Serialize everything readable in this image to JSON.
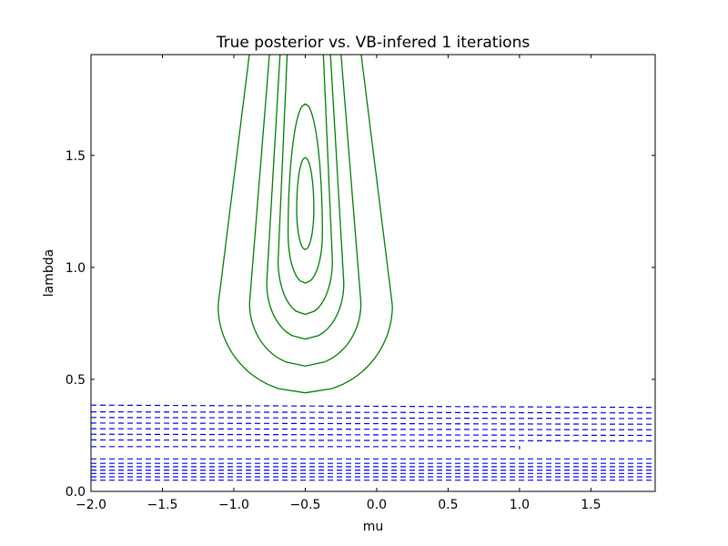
{
  "chart_data": {
    "type": "contour",
    "title": "True posterior vs. VB-infered 1 iterations",
    "xlabel": "mu",
    "ylabel": "lambda",
    "xlim": [
      -2.0,
      1.95
    ],
    "ylim": [
      0.0,
      1.95
    ],
    "xticks": [
      -2.0,
      -1.5,
      -1.0,
      -0.5,
      0.0,
      0.5,
      1.0,
      1.5
    ],
    "xtick_labels": [
      "−2.0",
      "−1.5",
      "−1.0",
      "−0.5",
      "0.0",
      "0.5",
      "1.0",
      "1.5"
    ],
    "yticks": [
      0.0,
      0.5,
      1.0,
      1.5
    ],
    "ytick_labels": [
      "0.0",
      "0.5",
      "1.0",
      "1.5"
    ],
    "grid": false,
    "series": [
      {
        "style": "solid",
        "color": "#007f00",
        "contours": [
          {
            "center_mu": -0.5,
            "half_width": 0.06,
            "lambda_min": 1.08,
            "lambda_max": 1.49,
            "lambda_widest": 1.26
          },
          {
            "center_mu": -0.5,
            "half_width": 0.12,
            "lambda_min": 0.93,
            "lambda_max": 1.73,
            "lambda_widest": 1.15
          },
          {
            "center_mu": -0.5,
            "half_width": 0.19,
            "lambda_min": 0.79,
            "lambda_max": 1.95,
            "lambda_widest": 1.03
          },
          {
            "center_mu": -0.5,
            "half_width": 0.27,
            "lambda_min": 0.68,
            "lambda_max": 1.95,
            "lambda_widest": 0.93
          },
          {
            "center_mu": -0.5,
            "half_width": 0.39,
            "lambda_min": 0.56,
            "lambda_max": 1.95,
            "lambda_widest": 0.84
          },
          {
            "center_mu": -0.5,
            "half_width": 0.61,
            "lambda_min": 0.44,
            "lambda_max": 1.95,
            "lambda_widest": 0.83
          }
        ]
      },
      {
        "style": "dashed",
        "color": "#0000ff",
        "contours": [
          {
            "lambda_left": 0.385,
            "lambda_right": 0.375
          },
          {
            "lambda_left": 0.355,
            "lambda_right": 0.35
          },
          {
            "lambda_left": 0.33,
            "lambda_right": 0.325
          },
          {
            "lambda_left": 0.305,
            "lambda_right": 0.3
          },
          {
            "lambda_left": 0.28,
            "lambda_right": 0.275
          },
          {
            "lambda_left": 0.255,
            "lambda_right": 0.25
          },
          {
            "lambda_left": 0.23,
            "lambda_right": 0.225
          },
          {
            "lambda_left": 0.2,
            "lambda_right": 0.2,
            "mu_end": 1.0
          },
          {
            "lambda_left": 0.145,
            "lambda_right": 0.145
          },
          {
            "lambda_left": 0.125,
            "lambda_right": 0.125
          },
          {
            "lambda_left": 0.11,
            "lambda_right": 0.11
          },
          {
            "lambda_left": 0.095,
            "lambda_right": 0.095
          },
          {
            "lambda_left": 0.08,
            "lambda_right": 0.08
          },
          {
            "lambda_left": 0.065,
            "lambda_right": 0.065
          },
          {
            "lambda_left": 0.05,
            "lambda_right": 0.05
          }
        ]
      }
    ]
  }
}
